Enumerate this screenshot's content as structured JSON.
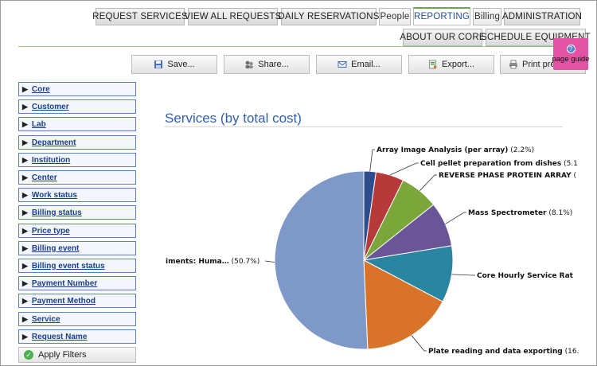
{
  "nav": {
    "row1": [
      "REQUEST SERVICES",
      "VIEW ALL REQUESTS",
      "DAILY RESERVATIONS",
      "People",
      "REPORTING",
      "Billing",
      "ADMINISTRATION"
    ],
    "row2": [
      "ABOUT OUR CORE",
      "SCHEDULE EQUIPMENT"
    ],
    "active": "REPORTING"
  },
  "toolbar": {
    "save": "Save...",
    "share": "Share...",
    "email": "Email...",
    "export": "Export...",
    "print": "Print preview..."
  },
  "page_guide": {
    "label": "page guide"
  },
  "filters": [
    "Core",
    "Customer",
    "Lab",
    "Department",
    "Institution",
    "Center",
    "Work status",
    "Billing status",
    "Price type",
    "Billing event",
    "Billing event status",
    "Payment Number",
    "Payment Method",
    "Service",
    "Request Name"
  ],
  "apply_filters": "Apply Filters",
  "chart_title": "Services (by total cost)",
  "colors": {
    "accent": "#2f5fb3",
    "filter_border": "#5a7fc3",
    "page_guide": "#e353a3",
    "nav_rule": "#9cc27d"
  },
  "chart_data": {
    "type": "pie",
    "title": "Services (by total cost)",
    "slices": [
      {
        "name": "Array Image Analysis (per array)",
        "label": "Array Image Analysis (per array)",
        "pct_text": "(2.2%)",
        "value": 2.2,
        "color": "#2e4d8f"
      },
      {
        "name": "Cell pellet preparation from dishes",
        "label": "Cell pellet preparation from dishes",
        "pct_text": "(5.1",
        "value": 5.1,
        "color": "#b73a3a"
      },
      {
        "name": "REVERSE PHASE PROTEIN ARRAY",
        "label": "REVERSE PHASE PROTEIN ARRAY",
        "pct_text": "(",
        "value": 7.0,
        "color": "#7aa63a"
      },
      {
        "name": "Mass Spectrometer",
        "label": "Mass Spectrometer",
        "pct_text": "(8.1%)",
        "value": 8.1,
        "color": "#6a5596"
      },
      {
        "name": "Core Hourly Service Rat",
        "label": "Core Hourly Service Rat",
        "pct_text": "",
        "value": 10.3,
        "color": "#2a86a0"
      },
      {
        "name": "Plate reading and data exporting",
        "label": "Plate reading and data exporting",
        "pct_text": "(16.",
        "value": 16.6,
        "color": "#d9732a"
      },
      {
        "name": "iments: Huma…",
        "label": "iments: Huma…",
        "pct_text": "(50.7%)",
        "value": 50.7,
        "color": "#7e98c8"
      }
    ]
  }
}
